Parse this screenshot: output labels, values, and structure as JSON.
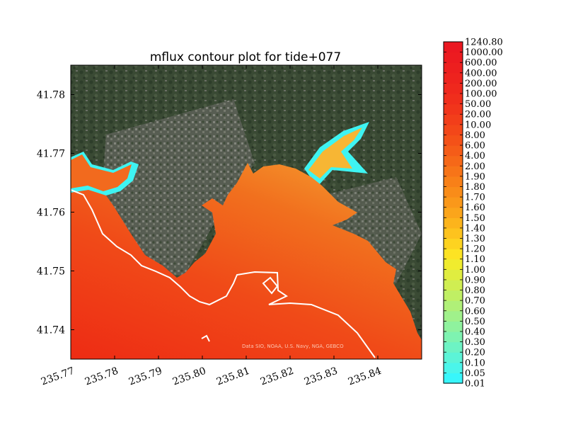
{
  "chart_data": {
    "type": "contour",
    "title": "mflux contour plot for tide+077",
    "xlabel": "",
    "ylabel": "",
    "xlim": [
      235.77,
      235.85
    ],
    "ylim": [
      41.735,
      41.785
    ],
    "x_ticks": [
      "235.77",
      "235.78",
      "235.79",
      "235.80",
      "235.81",
      "235.82",
      "235.83",
      "235.84"
    ],
    "y_ticks": [
      "41.74",
      "41.75",
      "41.76",
      "41.77",
      "41.78"
    ],
    "colorbar": {
      "levels": [
        "0.01",
        "0.05",
        "0.10",
        "0.20",
        "0.30",
        "0.40",
        "0.50",
        "0.60",
        "0.70",
        "0.80",
        "0.90",
        "1.00",
        "1.10",
        "1.20",
        "1.30",
        "1.40",
        "1.50",
        "1.60",
        "1.70",
        "1.80",
        "1.90",
        "2.00",
        "4.00",
        "6.00",
        "8.00",
        "10.00",
        "20.00",
        "50.00",
        "100.00",
        "200.00",
        "400.00",
        "600.00",
        "1000.00",
        "1240.80"
      ],
      "colors": [
        "#38f6fb",
        "#4bf5ea",
        "#5cf4d7",
        "#6df3c4",
        "#7ef3b1",
        "#8ff29e",
        "#a0f18b",
        "#b0f078",
        "#c0ef64",
        "#d0ee52",
        "#e0ed40",
        "#f0ec2e",
        "#fde323",
        "#fdd320",
        "#fdc31e",
        "#fcb41c",
        "#fba51b",
        "#fa981a",
        "#f98c19",
        "#f88018",
        "#f77418",
        "#f66818",
        "#f55c18",
        "#f45118",
        "#f34719",
        "#f23e1a",
        "#f1351b",
        "#f02e1c",
        "#ef281d",
        "#ee231e",
        "#ed1f1f",
        "#ec1b20",
        "#eb1821"
      ]
    },
    "attribution": "Data SIO, NOAA, U.S. Navy, NGA, GEBCO"
  }
}
